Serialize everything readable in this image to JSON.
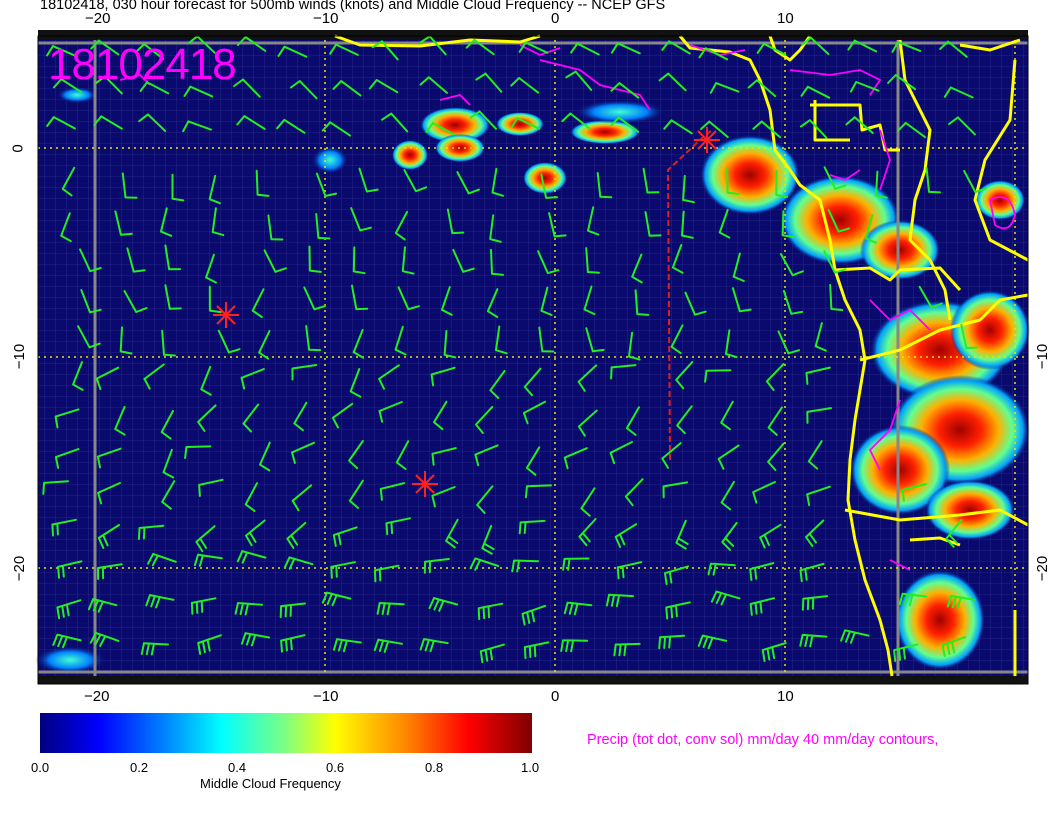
{
  "title": "18102418, 030 hour forecast for 500mb winds (knots) and Middle Cloud Frequency -- NCEP GFS",
  "stamp": "18102418",
  "top_ticks": [
    "−20",
    "−10",
    "0",
    "10"
  ],
  "bottom_ticks": [
    "−20",
    "−10",
    "0",
    "10"
  ],
  "left_ticks": [
    "0",
    "−10",
    "−20"
  ],
  "right_ticks": [
    "−10",
    "−20"
  ],
  "colorbar": {
    "ticks": [
      "0.0",
      "0.2",
      "0.4",
      "0.6",
      "0.8",
      "1.0"
    ],
    "label": "Middle Cloud Frequency"
  },
  "precip_label": "Precip (tot dot, conv sol) mm/day 40 mm/day contours,",
  "colors": {
    "ocean": "#0a0a6e",
    "coast": "#ffff00",
    "barb": "#22ee22",
    "marker": "#ff2020",
    "contour": "#ff00ff",
    "grid_dot": "#e6e600"
  }
}
